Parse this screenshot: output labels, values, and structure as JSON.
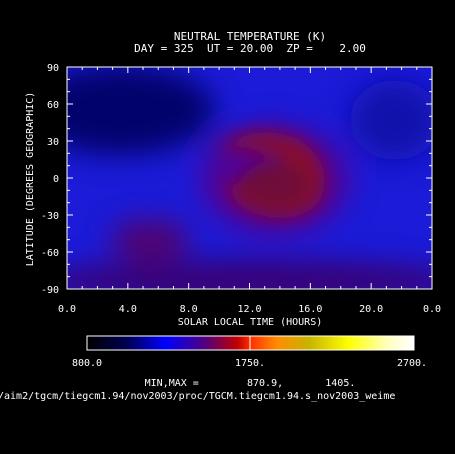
{
  "chart_data": {
    "type": "heatmap",
    "title": "NEUTRAL TEMPERATURE (K)",
    "subtitle": "DAY = 325  UT = 20.00  ZP =    2.00",
    "xlabel": "SOLAR LOCAL TIME (HOURS)",
    "ylabel": "LATITUDE (DEGREES GEOGRAPHIC)",
    "xlim": [
      0,
      24
    ],
    "ylim": [
      -90,
      90
    ],
    "x_ticks": [
      "0.0",
      "4.0",
      "8.0",
      "12.0",
      "16.0",
      "20.0",
      "0.0"
    ],
    "y_ticks": [
      "90",
      "60",
      "30",
      "0",
      "-30",
      "-60",
      "-90"
    ],
    "colorbar": {
      "min": 800,
      "max": 2700,
      "labels": [
        "800.0",
        "1750.",
        "2700."
      ]
    },
    "min_max_text": "MIN,MAX =        870.9,       1405.",
    "min": 870.9,
    "max": 1405,
    "features": [
      {
        "lt": 14.5,
        "lat": 10,
        "value": 1380,
        "note": "dayside maximum (crescent)"
      },
      {
        "lt": 5.0,
        "lat": -50,
        "value": 1230,
        "note": "secondary high near dawn, southern hemisphere"
      },
      {
        "lt": 3.0,
        "lat": 50,
        "value": 880,
        "note": "night-side minimum, northern hemisphere"
      }
    ]
  },
  "footer": {
    "path": "/aim2/tgcm/tiegcm1.94/nov2003/proc/TGCM.tiegcm1.94.s_nov2003_weime"
  }
}
